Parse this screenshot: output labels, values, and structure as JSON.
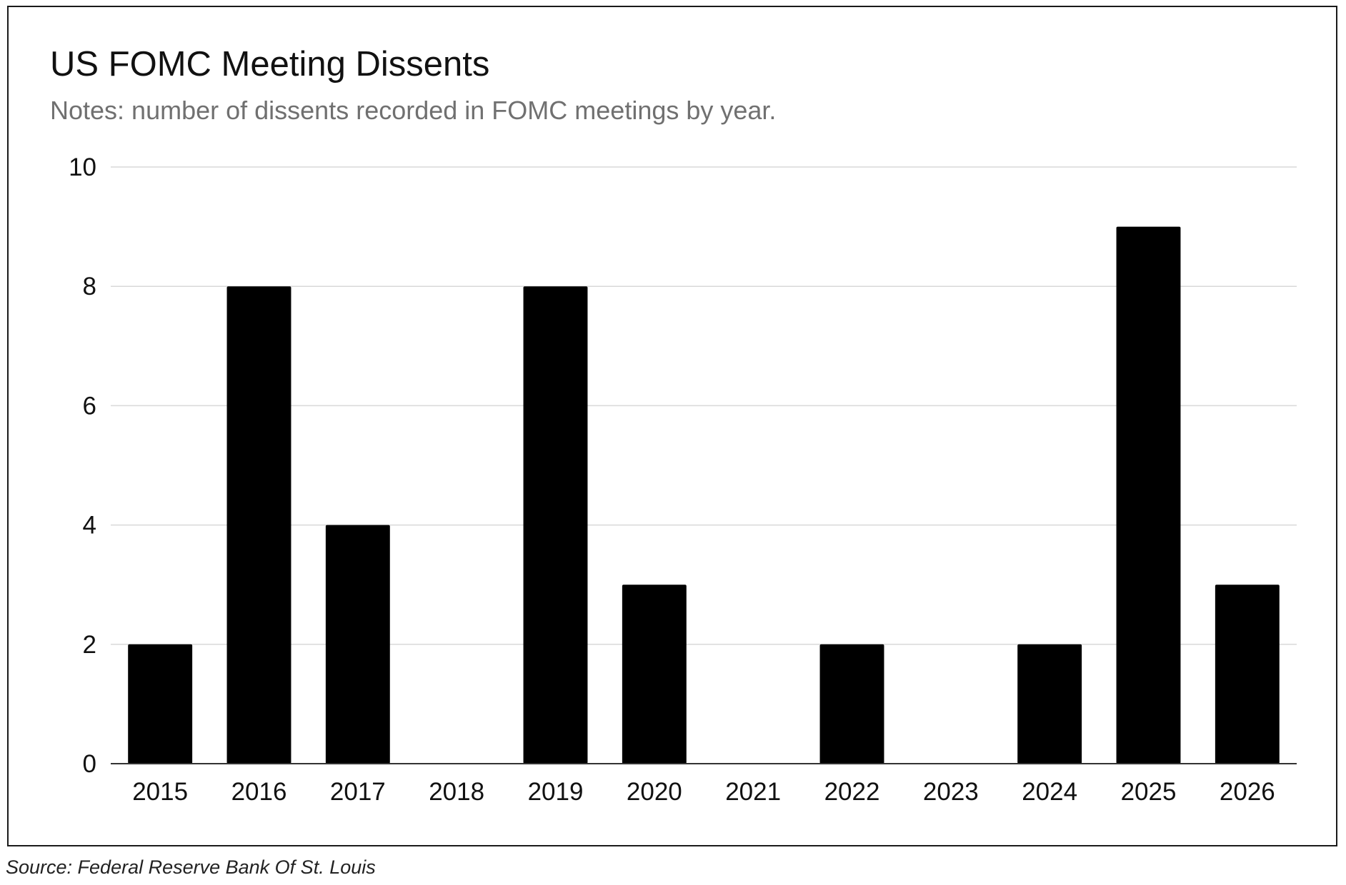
{
  "chart_data": {
    "type": "bar",
    "title": "US FOMC Meeting Dissents",
    "subtitle": "Notes: number of dissents recorded in FOMC meetings by year.",
    "categories": [
      "2015",
      "2016",
      "2017",
      "2018",
      "2019",
      "2020",
      "2021",
      "2022",
      "2023",
      "2024",
      "2025",
      "2026"
    ],
    "values": [
      2,
      8,
      4,
      0,
      8,
      3,
      0,
      2,
      0,
      2,
      9,
      3
    ],
    "ylim": [
      0,
      10
    ],
    "yticks": [
      0,
      2,
      4,
      6,
      8,
      10
    ],
    "xlabel": "",
    "ylabel": "",
    "grid": true,
    "bar_color": "#000000",
    "grid_color": "#d9d9d9"
  },
  "source": "Source: Federal Reserve Bank Of St. Louis"
}
